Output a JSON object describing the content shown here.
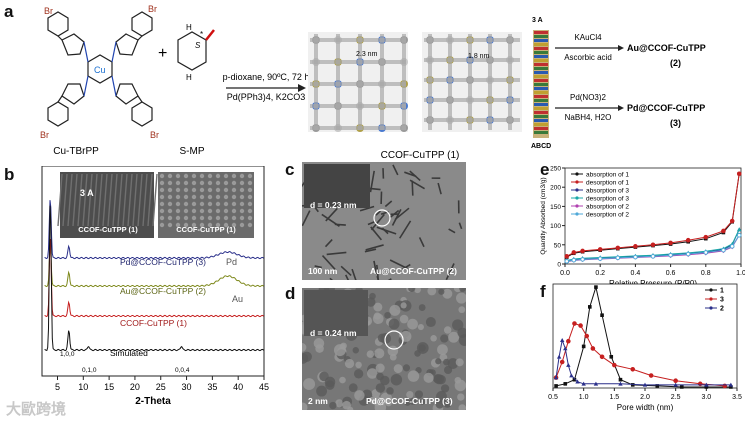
{
  "panels": {
    "a": "a",
    "b": "b",
    "c": "c",
    "d": "d",
    "e": "e",
    "f": "f"
  },
  "scheme": {
    "reactant1": "Cu-TBrPP",
    "reactant2": "S-MP",
    "atom_br": "Br",
    "atom_cu": "Cu",
    "atom_n": "N",
    "atom_h": "H",
    "plus": "+",
    "chiral_s": "S",
    "chiral_star": "*",
    "conditions_top": "p-dioxane, 90ºC, 72 h",
    "conditions_bottom": "Pd(PPh3)4, K2CO3",
    "pore1": "2.3 nm",
    "pore2": "1.8 nm",
    "spacing": "3 A",
    "stack": "ABCD",
    "product": "CCOF-CuTPP (1)",
    "au_reagent1": "KAuCl4",
    "au_reagent2": "Ascorbic acid",
    "au_product": "Au@CCOF-CuTPP",
    "au_num": "(2)",
    "pd_reagent1": "Pd(NO3)2",
    "pd_reagent2": "NaBH4, H2O",
    "pd_product": "Pd@CCOF-CuTPP",
    "pd_num": "(3)"
  },
  "panel_b": {
    "xlabel": "2-Theta",
    "inset1_label": "CCOF-CuTPP (1)",
    "inset2_label": "CCOF-CuTPP (1)",
    "inset_spacing": "3 A",
    "traces": [
      {
        "label": "Pd@CCOF-CuTPP (3)",
        "extra": "Pd",
        "color": "#2a2f8a"
      },
      {
        "label": "Au@CCOF-CuTPP (2)",
        "extra": "Au",
        "color": "#7f8a1e"
      },
      {
        "label": "CCOF-CuTPP (1)",
        "extra": "",
        "color": "#c62020"
      },
      {
        "label": "Simulated",
        "extra": "",
        "color": "#111111"
      }
    ],
    "peak_labels": [
      "1,0,0",
      "0,1,0",
      "0,0,4"
    ],
    "ticks": [
      "5",
      "10",
      "15",
      "20",
      "25",
      "30",
      "35",
      "40",
      "45"
    ]
  },
  "panel_c": {
    "d_spacing": "d = 0.23 nm",
    "scale": "100 nm",
    "label": "Au@CCOF-CuTPP (2)"
  },
  "panel_d": {
    "d_spacing": "d = 0.24 nm",
    "scale": "2 nm",
    "label": "Pd@CCOF-CuTPP (3)"
  },
  "chart_data": [
    {
      "type": "line",
      "panel": "e",
      "xlabel": "Relative Pressure (P/P0)",
      "ylabel": "Quantity Absorbed (cm3/g)",
      "xlim": [
        0,
        1.0
      ],
      "ylim": [
        0,
        250
      ],
      "xticks": [
        "0.0",
        "0.2",
        "0.4",
        "0.6",
        "0.8",
        "1.0"
      ],
      "yticks": [
        "0",
        "50",
        "100",
        "150",
        "200",
        "250"
      ],
      "legend_position": "top-left",
      "series": [
        {
          "name": "absorption of 1",
          "color": "#111111",
          "marker": "square",
          "x": [
            0.01,
            0.05,
            0.1,
            0.2,
            0.3,
            0.4,
            0.5,
            0.6,
            0.7,
            0.8,
            0.9,
            0.95,
            0.99
          ],
          "y": [
            18,
            28,
            32,
            36,
            40,
            44,
            48,
            52,
            58,
            66,
            82,
            110,
            235
          ]
        },
        {
          "name": "desorption of 1",
          "color": "#c62020",
          "marker": "circle",
          "x": [
            0.99,
            0.95,
            0.9,
            0.8,
            0.7,
            0.6,
            0.5,
            0.4,
            0.3,
            0.2,
            0.1,
            0.05,
            0.01
          ],
          "y": [
            235,
            112,
            86,
            70,
            62,
            55,
            50,
            46,
            42,
            38,
            34,
            30,
            20
          ]
        },
        {
          "name": "absorption of 3",
          "color": "#2a2f8a",
          "marker": "triangle",
          "x": [
            0.01,
            0.05,
            0.1,
            0.2,
            0.3,
            0.4,
            0.5,
            0.6,
            0.7,
            0.8,
            0.9,
            0.95,
            0.99
          ],
          "y": [
            8,
            12,
            14,
            16,
            18,
            20,
            22,
            24,
            27,
            31,
            38,
            50,
            90
          ]
        },
        {
          "name": "desorption of 3",
          "color": "#1aa8a8",
          "marker": "triangle-down",
          "x": [
            0.99,
            0.95,
            0.9,
            0.8,
            0.7,
            0.6,
            0.5,
            0.4,
            0.3,
            0.2,
            0.1,
            0.05,
            0.01
          ],
          "y": [
            90,
            52,
            40,
            33,
            29,
            26,
            23,
            21,
            19,
            17,
            15,
            13,
            9
          ]
        },
        {
          "name": "absorption of 2",
          "color": "#b040b0",
          "marker": "diamond",
          "x": [
            0.01,
            0.05,
            0.1,
            0.2,
            0.3,
            0.4,
            0.5,
            0.6,
            0.7,
            0.8,
            0.9,
            0.95,
            0.99
          ],
          "y": [
            6,
            9,
            11,
            13,
            15,
            17,
            19,
            21,
            24,
            28,
            34,
            44,
            75
          ]
        },
        {
          "name": "desorption of 2",
          "color": "#4fa8d8",
          "marker": "circle-open",
          "x": [
            0.99,
            0.95,
            0.9,
            0.8,
            0.7,
            0.6,
            0.5,
            0.4,
            0.3,
            0.2,
            0.1,
            0.05,
            0.01
          ],
          "y": [
            75,
            46,
            36,
            30,
            26,
            23,
            20,
            18,
            16,
            14,
            12,
            10,
            7
          ]
        }
      ]
    },
    {
      "type": "line",
      "panel": "f",
      "xlabel": "Pore width (nm)",
      "xlim": [
        0.5,
        3.5
      ],
      "ylim": [
        0,
        1.0
      ],
      "xticks": [
        "0.5",
        "1.0",
        "1.5",
        "2.0",
        "2.5",
        "3.0",
        "3.5"
      ],
      "legend_position": "top-right",
      "series": [
        {
          "name": "1",
          "color": "#111111",
          "marker": "square",
          "x": [
            0.55,
            0.7,
            0.85,
            1.0,
            1.1,
            1.2,
            1.3,
            1.45,
            1.6,
            1.8,
            2.2,
            2.6,
            3.0,
            3.4
          ],
          "y": [
            0.02,
            0.04,
            0.08,
            0.4,
            0.78,
            0.97,
            0.7,
            0.3,
            0.08,
            0.03,
            0.02,
            0.01,
            0.01,
            0.01
          ]
        },
        {
          "name": "3",
          "color": "#c62020",
          "marker": "circle",
          "x": [
            0.55,
            0.65,
            0.75,
            0.85,
            0.95,
            1.05,
            1.15,
            1.3,
            1.5,
            1.8,
            2.1,
            2.5,
            2.9,
            3.3
          ],
          "y": [
            0.1,
            0.25,
            0.45,
            0.62,
            0.6,
            0.5,
            0.38,
            0.3,
            0.22,
            0.18,
            0.12,
            0.07,
            0.04,
            0.02
          ]
        },
        {
          "name": "2",
          "color": "#2a2f8a",
          "marker": "triangle",
          "x": [
            0.55,
            0.6,
            0.65,
            0.7,
            0.75,
            0.8,
            0.9,
            1.0,
            1.2,
            1.6,
            2.0,
            2.5,
            3.0,
            3.4
          ],
          "y": [
            0.1,
            0.3,
            0.46,
            0.38,
            0.22,
            0.12,
            0.06,
            0.04,
            0.04,
            0.04,
            0.03,
            0.03,
            0.03,
            0.03
          ]
        }
      ]
    }
  ],
  "watermark": "大歐跨境"
}
